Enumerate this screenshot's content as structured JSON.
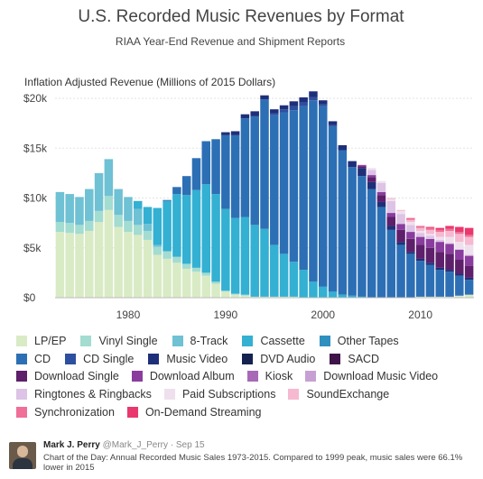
{
  "chart_data": {
    "type": "bar",
    "stacked": true,
    "title": "U.S. Recorded Music Revenues by Format",
    "subtitle": "RIAA Year-End Revenue and Shipment Reports",
    "ylabel": "Inflation Adjusted Revenue (Millions of 2015 Dollars)",
    "ylim": [
      0,
      20000
    ],
    "y_ticks": [
      0,
      5000,
      10000,
      15000,
      20000
    ],
    "y_tick_labels": [
      "$0",
      "$5k",
      "$10k",
      "$15k",
      "$20k"
    ],
    "x_ticks": [
      1980,
      1990,
      2000,
      2010
    ],
    "x_tick_labels": [
      "1980",
      "1990",
      "2000",
      "2010"
    ],
    "grid": true,
    "legend_placement": "bottom",
    "categories": [
      1973,
      1974,
      1975,
      1976,
      1977,
      1978,
      1979,
      1980,
      1981,
      1982,
      1983,
      1984,
      1985,
      1986,
      1987,
      1988,
      1989,
      1990,
      1991,
      1992,
      1993,
      1994,
      1995,
      1996,
      1997,
      1998,
      1999,
      2000,
      2001,
      2002,
      2003,
      2004,
      2005,
      2006,
      2007,
      2008,
      2009,
      2010,
      2011,
      2012,
      2013,
      2014,
      2015
    ],
    "series": [
      {
        "name": "LP/EP",
        "color": "#d9ebc5",
        "values": [
          6600,
          6500,
          6400,
          6700,
          7600,
          8800,
          7100,
          6600,
          6300,
          5800,
          4300,
          3900,
          3500,
          2900,
          2600,
          2200,
          1400,
          600,
          300,
          200,
          100,
          100,
          100,
          100,
          100,
          0,
          0,
          0,
          0,
          0,
          0,
          0,
          0,
          0,
          0,
          0,
          0,
          100,
          100,
          100,
          100,
          200,
          300
        ]
      },
      {
        "name": "Vinyl Single",
        "color": "#a3dcd0",
        "values": [
          1000,
          1000,
          900,
          1000,
          1100,
          1400,
          1200,
          1100,
          1000,
          900,
          800,
          700,
          600,
          500,
          400,
          300,
          200,
          100,
          100,
          100,
          0,
          0,
          0,
          0,
          0,
          0,
          0,
          0,
          0,
          0,
          0,
          0,
          0,
          0,
          0,
          0,
          0,
          0,
          0,
          0,
          0,
          0,
          0
        ]
      },
      {
        "name": "8-Track",
        "color": "#6fc1d4",
        "values": [
          3000,
          2900,
          2800,
          3200,
          3800,
          3700,
          2600,
          2400,
          1600,
          700,
          200,
          100,
          0,
          0,
          0,
          0,
          0,
          0,
          0,
          0,
          0,
          0,
          0,
          0,
          0,
          0,
          0,
          0,
          0,
          0,
          0,
          0,
          0,
          0,
          0,
          0,
          0,
          0,
          0,
          0,
          0,
          0,
          0
        ]
      },
      {
        "name": "Cassette",
        "color": "#33b0d2",
        "values": [
          0,
          0,
          0,
          0,
          0,
          0,
          0,
          0,
          800,
          1700,
          3700,
          5000,
          6300,
          6900,
          7800,
          8900,
          8800,
          8200,
          7600,
          7800,
          7200,
          6800,
          5200,
          4300,
          3500,
          2800,
          1600,
          1100,
          600,
          300,
          200,
          100,
          0,
          0,
          0,
          0,
          0,
          0,
          0,
          0,
          0,
          0,
          0
        ]
      },
      {
        "name": "Other Tapes",
        "color": "#2f8fbf",
        "values": [
          0,
          0,
          0,
          0,
          0,
          0,
          0,
          0,
          0,
          0,
          0,
          0,
          0,
          0,
          0,
          0,
          0,
          0,
          0,
          0,
          0,
          0,
          0,
          0,
          0,
          0,
          0,
          0,
          0,
          0,
          0,
          0,
          0,
          0,
          0,
          0,
          0,
          0,
          0,
          0,
          0,
          0,
          0
        ]
      },
      {
        "name": "CD",
        "color": "#2d6fb5",
        "values": [
          0,
          0,
          0,
          0,
          0,
          0,
          0,
          0,
          0,
          0,
          0,
          100,
          700,
          1900,
          3200,
          4300,
          5500,
          7400,
          8300,
          9900,
          10900,
          13000,
          13000,
          14200,
          15200,
          16400,
          18200,
          18100,
          16600,
          14500,
          12900,
          12100,
          10900,
          9100,
          6800,
          5300,
          4400,
          3600,
          3200,
          2700,
          2500,
          2000,
          1500
        ]
      },
      {
        "name": "CD Single",
        "color": "#2d4f9f",
        "values": [
          0,
          0,
          0,
          0,
          0,
          0,
          0,
          0,
          0,
          0,
          0,
          0,
          0,
          0,
          0,
          0,
          0,
          0,
          0,
          0,
          0,
          0,
          200,
          300,
          400,
          400,
          300,
          200,
          100,
          0,
          0,
          0,
          0,
          0,
          0,
          0,
          0,
          0,
          0,
          0,
          0,
          0,
          0
        ]
      },
      {
        "name": "Music Video",
        "color": "#1e2f7a",
        "values": [
          0,
          0,
          0,
          0,
          0,
          0,
          0,
          0,
          0,
          0,
          0,
          0,
          0,
          0,
          0,
          0,
          0,
          300,
          400,
          400,
          500,
          400,
          400,
          400,
          500,
          500,
          600,
          400,
          400,
          500,
          600,
          800,
          700,
          500,
          400,
          300,
          200,
          200,
          200,
          200,
          200,
          200,
          200
        ]
      },
      {
        "name": "DVD Audio",
        "color": "#15224f",
        "values": [
          0,
          0,
          0,
          0,
          0,
          0,
          0,
          0,
          0,
          0,
          0,
          0,
          0,
          0,
          0,
          0,
          0,
          0,
          0,
          0,
          0,
          0,
          0,
          0,
          0,
          0,
          0,
          0,
          0,
          0,
          0,
          0,
          0,
          0,
          0,
          0,
          0,
          0,
          0,
          0,
          0,
          0,
          0
        ]
      },
      {
        "name": "SACD",
        "color": "#3f1448",
        "values": [
          0,
          0,
          0,
          0,
          0,
          0,
          0,
          0,
          0,
          0,
          0,
          0,
          0,
          0,
          0,
          0,
          0,
          0,
          0,
          0,
          0,
          0,
          0,
          0,
          0,
          0,
          0,
          0,
          0,
          0,
          0,
          0,
          0,
          0,
          0,
          0,
          0,
          0,
          0,
          0,
          0,
          0,
          0
        ]
      },
      {
        "name": "Download Single",
        "color": "#5e1f6b",
        "values": [
          0,
          0,
          0,
          0,
          0,
          0,
          0,
          0,
          0,
          0,
          0,
          0,
          0,
          0,
          0,
          0,
          0,
          0,
          0,
          0,
          0,
          0,
          0,
          0,
          0,
          0,
          0,
          0,
          0,
          0,
          0,
          200,
          500,
          700,
          900,
          1200,
          1300,
          1400,
          1500,
          1600,
          1600,
          1400,
          1200
        ]
      },
      {
        "name": "Download Album",
        "color": "#8a3d9e",
        "values": [
          0,
          0,
          0,
          0,
          0,
          0,
          0,
          0,
          0,
          0,
          0,
          0,
          0,
          0,
          0,
          0,
          0,
          0,
          0,
          0,
          0,
          0,
          0,
          0,
          0,
          0,
          0,
          0,
          0,
          0,
          0,
          100,
          200,
          300,
          400,
          600,
          700,
          800,
          900,
          1000,
          1000,
          1000,
          1000
        ]
      },
      {
        "name": "Kiosk",
        "color": "#a868b8",
        "values": [
          0,
          0,
          0,
          0,
          0,
          0,
          0,
          0,
          0,
          0,
          0,
          0,
          0,
          0,
          0,
          0,
          0,
          0,
          0,
          0,
          0,
          0,
          0,
          0,
          0,
          0,
          0,
          0,
          0,
          0,
          0,
          0,
          0,
          0,
          0,
          0,
          0,
          0,
          0,
          0,
          0,
          0,
          0
        ]
      },
      {
        "name": "Download Music Video",
        "color": "#c7a0d3",
        "values": [
          0,
          0,
          0,
          0,
          0,
          0,
          0,
          0,
          0,
          0,
          0,
          0,
          0,
          0,
          0,
          0,
          0,
          0,
          0,
          0,
          0,
          0,
          0,
          0,
          0,
          0,
          0,
          0,
          0,
          0,
          0,
          0,
          0,
          0,
          0,
          0,
          0,
          0,
          0,
          0,
          0,
          0,
          0
        ]
      },
      {
        "name": "Ringtones & Ringbacks",
        "color": "#ddc3e6",
        "values": [
          0,
          0,
          0,
          0,
          0,
          0,
          0,
          0,
          0,
          0,
          0,
          0,
          0,
          0,
          0,
          0,
          0,
          0,
          0,
          0,
          0,
          0,
          0,
          0,
          0,
          0,
          0,
          0,
          0,
          0,
          0,
          0,
          500,
          900,
          1200,
          1000,
          700,
          400,
          300,
          200,
          100,
          100,
          100
        ]
      },
      {
        "name": "Paid Subscriptions",
        "color": "#efe0ee",
        "values": [
          0,
          0,
          0,
          0,
          0,
          0,
          0,
          0,
          0,
          0,
          0,
          0,
          0,
          0,
          0,
          0,
          0,
          0,
          0,
          0,
          0,
          0,
          0,
          0,
          0,
          0,
          0,
          0,
          0,
          0,
          0,
          100,
          200,
          200,
          200,
          300,
          300,
          200,
          200,
          300,
          600,
          700,
          1000
        ]
      },
      {
        "name": "SoundExchange",
        "color": "#f6b9cf",
        "values": [
          0,
          0,
          0,
          0,
          0,
          0,
          0,
          0,
          0,
          0,
          0,
          0,
          0,
          0,
          0,
          0,
          0,
          0,
          0,
          0,
          0,
          0,
          0,
          0,
          0,
          0,
          0,
          0,
          0,
          0,
          0,
          0,
          0,
          0,
          100,
          100,
          200,
          300,
          400,
          500,
          600,
          800,
          800
        ]
      },
      {
        "name": "Synchronization",
        "color": "#ef6f98",
        "values": [
          0,
          0,
          0,
          0,
          0,
          0,
          0,
          0,
          0,
          0,
          0,
          0,
          0,
          0,
          0,
          0,
          0,
          0,
          0,
          0,
          0,
          0,
          0,
          0,
          0,
          0,
          0,
          0,
          0,
          0,
          0,
          0,
          0,
          0,
          0,
          0,
          200,
          200,
          200,
          200,
          200,
          200,
          200
        ]
      },
      {
        "name": "On-Demand Streaming",
        "color": "#e9386d",
        "values": [
          0,
          0,
          0,
          0,
          0,
          0,
          0,
          0,
          0,
          0,
          0,
          0,
          0,
          0,
          0,
          0,
          0,
          0,
          0,
          0,
          0,
          0,
          0,
          0,
          0,
          0,
          0,
          0,
          0,
          0,
          0,
          0,
          0,
          0,
          0,
          0,
          0,
          0,
          100,
          200,
          300,
          500,
          700
        ]
      }
    ]
  },
  "legend_rows": [
    [
      "LP/EP",
      "Vinyl Single",
      "8-Track",
      "Cassette",
      "Other Tapes"
    ],
    [
      "CD",
      "CD Single",
      "Music Video",
      "DVD Audio",
      "SACD"
    ],
    [
      "Download Single",
      "Download Album",
      "Kiosk",
      "Download Music Video"
    ],
    [
      "Ringtones & Ringbacks",
      "Paid Subscriptions",
      "SoundExchange"
    ],
    [
      "Synchronization",
      "On-Demand Streaming"
    ]
  ],
  "tweet": {
    "author_name": "Mark J. Perry",
    "handle": "@Mark_J_Perry",
    "date": "· Sep 15",
    "text": "Chart of the Day: Annual Recorded Music Sales 1973-2015. Compared to 1999 peak, music sales were 66.1% lower in 2015"
  }
}
